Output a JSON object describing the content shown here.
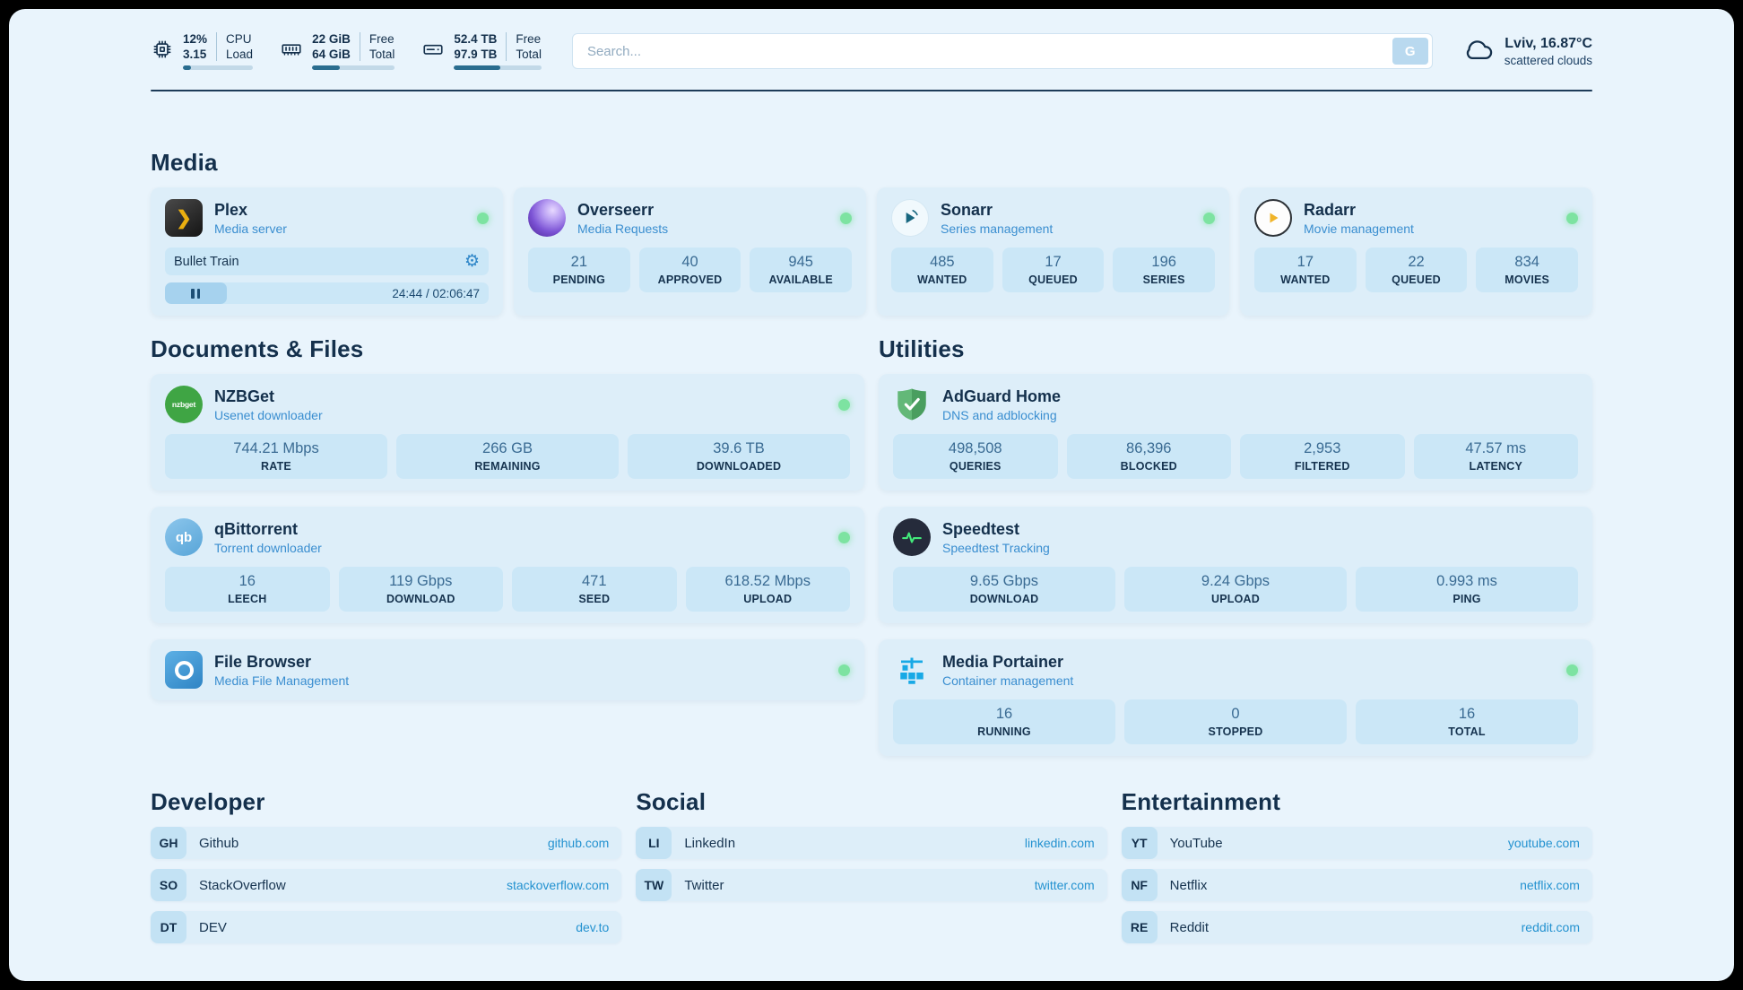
{
  "colors": {
    "accent": "#2492d0",
    "status_online": "#7de3a1",
    "heading": "#14304c"
  },
  "topbar": {
    "cpu": {
      "value": "12%",
      "total": "3.15",
      "label_top": "CPU",
      "label_bottom": "Load",
      "percent": 12
    },
    "ram": {
      "value": "22 GiB",
      "total": "64 GiB",
      "label_top": "Free",
      "label_bottom": "Total",
      "percent": 34
    },
    "disk": {
      "value": "52.4 TB",
      "total": "97.9 TB",
      "label_top": "Free",
      "label_bottom": "Total",
      "percent": 53
    },
    "search": {
      "placeholder": "Search...",
      "button_label": "G"
    },
    "weather": {
      "location": "Lviv, 16.87°C",
      "description": "scattered clouds"
    }
  },
  "sections": {
    "media": {
      "title": "Media",
      "plex": {
        "name": "Plex",
        "subtitle": "Media server",
        "now_playing": "Bullet Train",
        "time": "24:44 / 02:06:47",
        "progress_percent": 19
      },
      "cards": [
        {
          "name": "Overseerr",
          "subtitle": "Media Requests",
          "stats": [
            {
              "value": "21",
              "label": "PENDING"
            },
            {
              "value": "40",
              "label": "APPROVED"
            },
            {
              "value": "945",
              "label": "AVAILABLE"
            }
          ]
        },
        {
          "name": "Sonarr",
          "subtitle": "Series management",
          "stats": [
            {
              "value": "485",
              "label": "WANTED"
            },
            {
              "value": "17",
              "label": "QUEUED"
            },
            {
              "value": "196",
              "label": "SERIES"
            }
          ]
        },
        {
          "name": "Radarr",
          "subtitle": "Movie management",
          "stats": [
            {
              "value": "17",
              "label": "WANTED"
            },
            {
              "value": "22",
              "label": "QUEUED"
            },
            {
              "value": "834",
              "label": "MOVIES"
            }
          ]
        }
      ]
    },
    "documents": {
      "title": "Documents & Files",
      "cards": [
        {
          "name": "NZBGet",
          "subtitle": "Usenet downloader",
          "stats": [
            {
              "value": "744.21 Mbps",
              "label": "RATE"
            },
            {
              "value": "266 GB",
              "label": "REMAINING"
            },
            {
              "value": "39.6 TB",
              "label": "DOWNLOADED"
            }
          ]
        },
        {
          "name": "qBittorrent",
          "subtitle": "Torrent downloader",
          "stats": [
            {
              "value": "16",
              "label": "LEECH"
            },
            {
              "value": "119 Gbps",
              "label": "DOWNLOAD"
            },
            {
              "value": "471",
              "label": "SEED"
            },
            {
              "value": "618.52 Mbps",
              "label": "UPLOAD"
            }
          ]
        },
        {
          "name": "File Browser",
          "subtitle": "Media File Management",
          "stats": []
        }
      ]
    },
    "utilities": {
      "title": "Utilities",
      "cards": [
        {
          "name": "AdGuard Home",
          "subtitle": "DNS and adblocking",
          "stats": [
            {
              "value": "498,508",
              "label": "QUERIES"
            },
            {
              "value": "86,396",
              "label": "BLOCKED"
            },
            {
              "value": "2,953",
              "label": "FILTERED"
            },
            {
              "value": "47.57 ms",
              "label": "LATENCY"
            }
          ]
        },
        {
          "name": "Speedtest",
          "subtitle": "Speedtest Tracking",
          "stats": [
            {
              "value": "9.65 Gbps",
              "label": "DOWNLOAD"
            },
            {
              "value": "9.24 Gbps",
              "label": "UPLOAD"
            },
            {
              "value": "0.993 ms",
              "label": "PING"
            }
          ]
        },
        {
          "name": "Media Portainer",
          "subtitle": "Container management",
          "stats": [
            {
              "value": "16",
              "label": "RUNNING"
            },
            {
              "value": "0",
              "label": "STOPPED"
            },
            {
              "value": "16",
              "label": "TOTAL"
            }
          ]
        }
      ]
    },
    "bookmarks": [
      {
        "title": "Developer",
        "items": [
          {
            "abbr": "GH",
            "name": "Github",
            "url": "github.com"
          },
          {
            "abbr": "SO",
            "name": "StackOverflow",
            "url": "stackoverflow.com"
          },
          {
            "abbr": "DT",
            "name": "DEV",
            "url": "dev.to"
          }
        ]
      },
      {
        "title": "Social",
        "items": [
          {
            "abbr": "LI",
            "name": "LinkedIn",
            "url": "linkedin.com"
          },
          {
            "abbr": "TW",
            "name": "Twitter",
            "url": "twitter.com"
          }
        ]
      },
      {
        "title": "Entertainment",
        "items": [
          {
            "abbr": "YT",
            "name": "YouTube",
            "url": "youtube.com"
          },
          {
            "abbr": "NF",
            "name": "Netflix",
            "url": "netflix.com"
          },
          {
            "abbr": "RE",
            "name": "Reddit",
            "url": "reddit.com"
          }
        ]
      }
    ]
  }
}
